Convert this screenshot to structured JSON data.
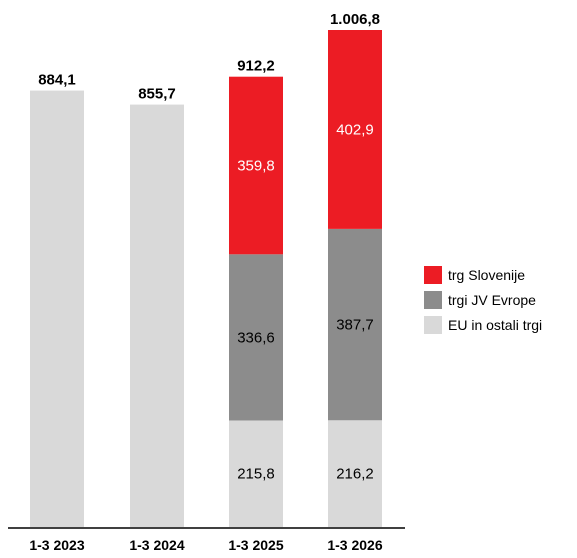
{
  "chart_data": {
    "type": "bar",
    "stacked": true,
    "categories": [
      "1-3 2023",
      "1-3 2024",
      "1-3 2025",
      "1-3 2026"
    ],
    "totals": [
      "884,1",
      "855,7",
      "912,2",
      "1.006,8"
    ],
    "total_values": [
      884.1,
      855.7,
      912.2,
      1006.8
    ],
    "series": [
      {
        "name": "EU in ostali trgi",
        "color": "#d9d9d9",
        "values": [
          884.1,
          855.7,
          215.8,
          216.2
        ],
        "labels": [
          "",
          "",
          "215,8",
          "216,2"
        ],
        "label_color": "#000000"
      },
      {
        "name": "trgi JV Evrope",
        "color": "#8c8c8c",
        "values": [
          0,
          0,
          336.6,
          387.7
        ],
        "labels": [
          "",
          "",
          "336,6",
          "387,7"
        ],
        "label_color": "#000000"
      },
      {
        "name": "trg Slovenije",
        "color": "#ec1c24",
        "values": [
          0,
          0,
          359.8,
          402.9
        ],
        "labels": [
          "",
          "",
          "359,8",
          "402,9"
        ],
        "label_color": "#ffffff"
      }
    ],
    "legend_order": [
      "trg Slovenije",
      "trgi JV Evrope",
      "EU in ostali trgi"
    ],
    "legend_position": "right",
    "grid": false,
    "ylim": [
      0,
      1006.8
    ]
  }
}
